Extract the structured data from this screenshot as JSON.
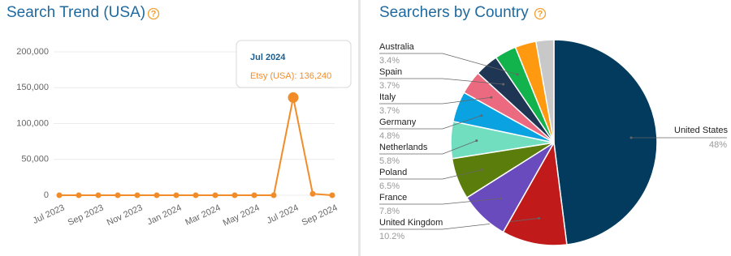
{
  "chart_data": [
    {
      "type": "line",
      "title": "Search Trend (USA)",
      "help": "?",
      "categories": [
        "Jul 2023",
        null,
        "Sep 2023",
        null,
        "Nov 2023",
        null,
        "Jan 2024",
        null,
        "Mar 2024",
        null,
        "May 2024",
        null,
        "Jul 2024",
        null,
        "Sep 2024"
      ],
      "series": [
        {
          "name": "Etsy (USA)",
          "color": "#f28c28",
          "values": [
            0,
            0,
            0,
            0,
            0,
            0,
            0,
            0,
            0,
            0,
            0,
            0,
            136240,
            2000,
            0
          ]
        }
      ],
      "ylim": [
        0,
        200000
      ],
      "yticks": [
        0,
        {
          "value": 50000,
          "label": "50,000"
        },
        {
          "value": 100000,
          "label": "100,000"
        },
        {
          "value": 150000,
          "label": "150,000"
        },
        {
          "value": 200000,
          "label": "200,000"
        }
      ],
      "grid": true,
      "tooltip": {
        "title": "Jul 2024",
        "text": "Etsy (USA): 136,240"
      }
    },
    {
      "type": "pie",
      "title": "Searchers by Country",
      "help": "?",
      "categories": [
        "United States",
        "United Kingdom",
        "France",
        "Poland",
        "Netherlands",
        "Germany",
        "Italy",
        "Spain",
        "Australia",
        null,
        null
      ],
      "values": [
        48,
        10.2,
        7.8,
        6.5,
        5.8,
        4.8,
        3.7,
        3.7,
        3.4,
        3.3,
        2.8
      ],
      "value_labels": [
        "48%",
        "10.2%",
        "7.8%",
        "6.5%",
        "5.8%",
        "4.8%",
        "3.7%",
        "3.7%",
        "3.4%",
        null,
        null
      ],
      "colors": [
        "#023b5e",
        "#c01a1a",
        "#6a4bbd",
        "#5a7d0c",
        "#72dec0",
        "#0aa2e0",
        "#ec6a80",
        "#1e3654",
        "#12b34c",
        "#ff9a10",
        "#c8c8c8"
      ]
    }
  ]
}
